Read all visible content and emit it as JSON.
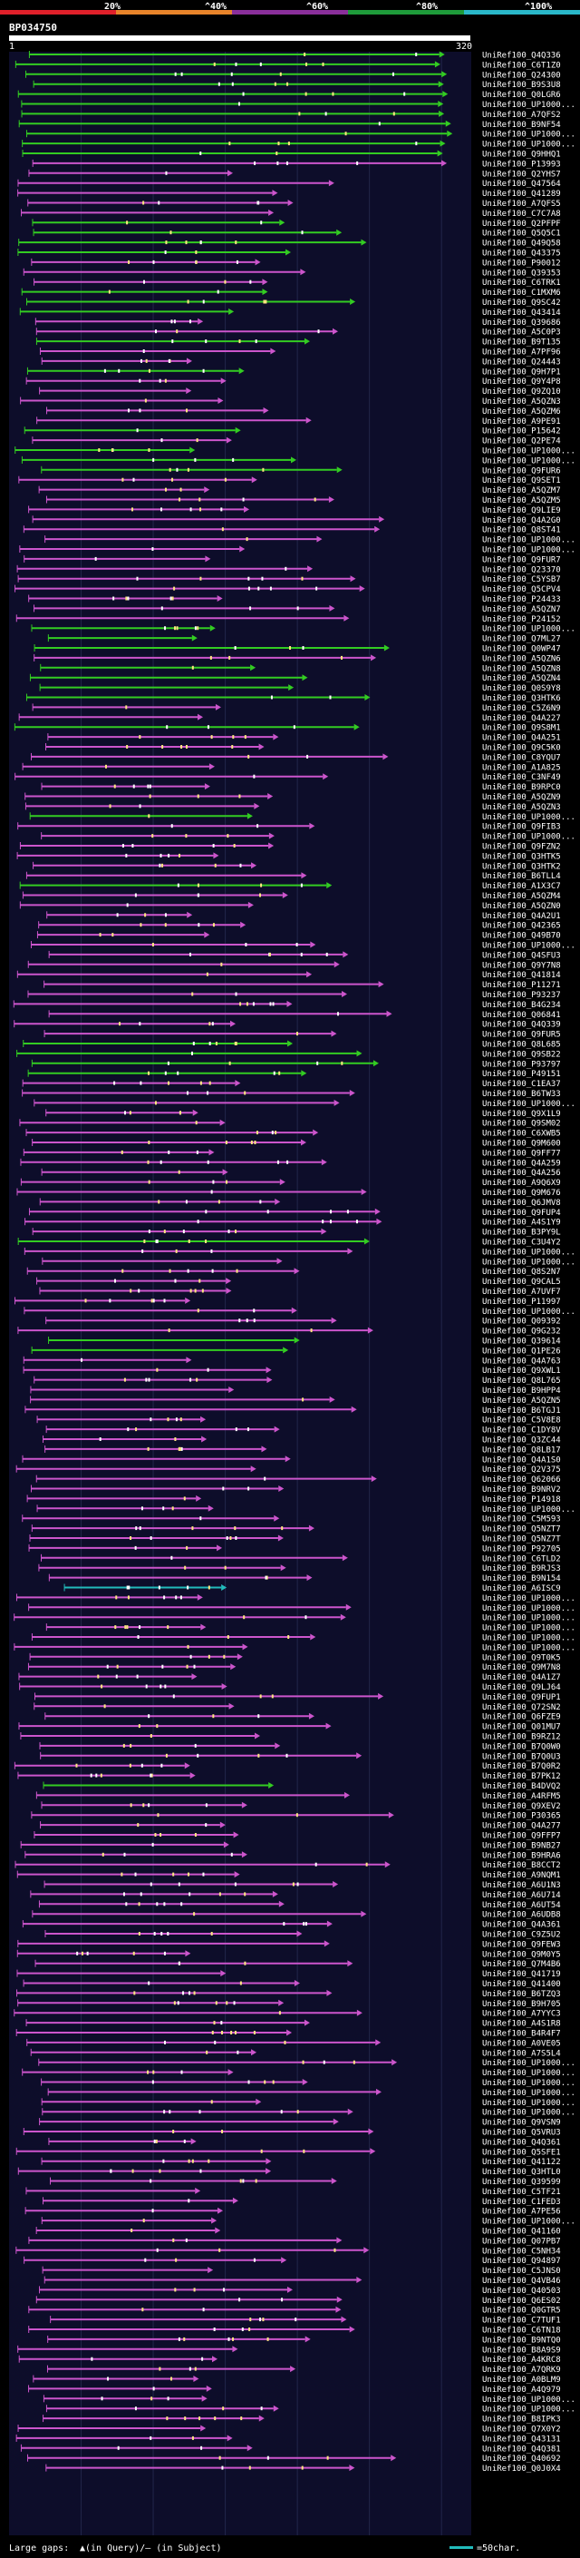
{
  "chart_data": {
    "type": "alignment-overview",
    "query_name": "BP034750",
    "query_range": {
      "start": 1,
      "end": 320,
      "start_label": "1",
      "end_label": "320"
    },
    "identity_scale": {
      "labels": [
        "20%",
        "^40%",
        "^60%",
        "^80%",
        "^100%"
      ],
      "colors": [
        "#e0202a",
        "#e8842a",
        "#8a2f9a",
        "#1e9b3a",
        "#2ab8c9"
      ]
    },
    "series_colors": {
      "high": "#33cc22",
      "mid": "#cc55cc",
      "cyan": "#22bbbb"
    },
    "hit_ids": [
      "UniRef100_Q4Q336",
      "UniRef100_C6T1Z0",
      "UniRef100_Q24300",
      "UniRef100_B9S3U8",
      "UniRef100_Q0LGR6",
      "UniRef100_UP1000...",
      "UniRef100_A7QFS2",
      "UniRef100_B9NF54",
      "UniRef100_UP1000...",
      "UniRef100_UP1000...",
      "UniRef100_Q9HHQ1",
      "UniRef100_P13993",
      "UniRef100_Q2YHS7",
      "UniRef100_Q47564",
      "UniRef100_Q41289",
      "UniRef100_A7QFS5",
      "UniRef100_C7C7A8",
      "UniRef100_Q2PFPF",
      "UniRef100_Q5Q5C1",
      "UniRef100_Q49Q58",
      "UniRef100_Q43375",
      "UniRef100_P90012",
      "UniRef100_Q39353",
      "UniRef100_C6TRK1",
      "UniRef100_C1MXM6",
      "UniRef100_Q9SC42",
      "UniRef100_Q43414",
      "UniRef100_Q39686",
      "UniRef100_A5C0P3",
      "UniRef100_B9T135",
      "UniRef100_A7PF96",
      "UniRef100_Q24443",
      "UniRef100_Q9H7P1",
      "UniRef100_Q9Y4P8",
      "UniRef100_Q9ZQ10",
      "UniRef100_A5QZN3",
      "UniRef100_A5QZM6",
      "UniRef100_A9PE91",
      "UniRef100_P15642",
      "UniRef100_Q2PE74",
      "UniRef100_UP1000...",
      "UniRef100_UP1000...",
      "UniRef100_Q9FUR6",
      "UniRef100_Q9SET1",
      "UniRef100_A5QZM7",
      "UniRef100_A5QZM5",
      "UniRef100_Q9LIE9",
      "UniRef100_Q4A2G0",
      "UniRef100_Q8ST41",
      "UniRef100_UP1000...",
      "UniRef100_UP1000...",
      "UniRef100_Q9FUR7",
      "UniRef100_Q23370",
      "UniRef100_C5YSB7",
      "UniRef100_Q5CPV4",
      "UniRef100_P24433",
      "UniRef100_A5QZN7",
      "UniRef100_P24152",
      "UniRef100_UP1000...",
      "UniRef100_Q7ML27",
      "UniRef100_Q0WP47",
      "UniRef100_A5QZN6",
      "UniRef100_A5QZN8",
      "UniRef100_A5QZN4",
      "UniRef100_Q0S9Y8",
      "UniRef100_Q3HTK6",
      "UniRef100_C5Z6N9",
      "UniRef100_Q4A227",
      "UniRef100_Q9S8M1",
      "UniRef100_Q4A251",
      "UniRef100_Q9C5K0",
      "UniRef100_C8YQU7",
      "UniRef100_A1A825",
      "UniRef100_C3NF49",
      "UniRef100_B9RPC0",
      "UniRef100_A5QZN9",
      "UniRef100_A5QZN3",
      "UniRef100_UP1000...",
      "UniRef100_Q9FIB3",
      "UniRef100_UP1000...",
      "UniRef100_Q9FZN2",
      "UniRef100_Q3HTK5",
      "UniRef100_Q3HTK2",
      "UniRef100_B6TLL4",
      "UniRef100_A1X3C7",
      "UniRef100_A5QZM4",
      "UniRef100_A5QZN0",
      "UniRef100_Q4A2U1",
      "UniRef100_Q42365",
      "UniRef100_Q49B70",
      "UniRef100_UP1000...",
      "UniRef100_Q4SFU3",
      "UniRef100_Q9Y7N8",
      "UniRef100_Q41814",
      "UniRef100_P11271",
      "UniRef100_P93237",
      "UniRef100_B4G234",
      "UniRef100_Q06841",
      "UniRef100_Q4Q339",
      "UniRef100_Q9FUR5",
      "UniRef100_Q8L685",
      "UniRef100_Q9SB22",
      "UniRef100_P93797",
      "UniRef100_P49151",
      "UniRef100_C1EA37",
      "UniRef100_B6TW33",
      "UniRef100_UP1000...",
      "UniRef100_Q9X1L9",
      "UniRef100_Q9SM02",
      "UniRef100_C6XWB5",
      "UniRef100_Q9M600",
      "UniRef100_Q9FF77",
      "UniRef100_Q4A259",
      "UniRef100_Q4A256",
      "UniRef100_A9Q6X9",
      "UniRef100_Q9M676",
      "UniRef100_Q6JMV8",
      "UniRef100_Q9FUP4",
      "UniRef100_A4S1Y9",
      "UniRef100_B3PY9L",
      "UniRef100_C3U4Y2",
      "UniRef100_UP1000...",
      "UniRef100_UP1000...",
      "UniRef100_Q8S2N7",
      "UniRef100_Q9CAL5",
      "UniRef100_A7UVF7",
      "UniRef100_P11997",
      "UniRef100_UP1000...",
      "UniRef100_Q09392",
      "UniRef100_Q9G232",
      "UniRef100_Q39614",
      "UniRef100_Q1PE26",
      "UniRef100_Q4A763",
      "UniRef100_Q9XWL1",
      "UniRef100_Q8L765",
      "UniRef100_B9HPP4",
      "UniRef100_A5QZN5",
      "UniRef100_B6TGJ1",
      "UniRef100_C5V8E8",
      "UniRef100_C1DY8V",
      "UniRef100_Q3ZC44",
      "UniRef100_Q8LB17",
      "UniRef100_Q4A1S0",
      "UniRef100_Q2V375",
      "UniRef100_Q62066",
      "UniRef100_B9NRV2",
      "UniRef100_P14918",
      "UniRef100_UP1000...",
      "UniRef100_C5M593",
      "UniRef100_Q5NZT7",
      "UniRef100_Q5NZ7T",
      "UniRef100_P92705",
      "UniRef100_C6TLD2",
      "UniRef100_B9RJS3",
      "UniRef100_B9N154",
      "UniRef100_A6ISC9",
      "UniRef100_UP1000...",
      "UniRef100_UP1000...",
      "UniRef100_UP1000...",
      "UniRef100_UP1000...",
      "UniRef100_UP1000...",
      "UniRef100_UP1000...",
      "UniRef100_Q9T0K5",
      "UniRef100_Q9M7N8",
      "UniRef100_Q4A1Z7",
      "UniRef100_Q9LJ64",
      "UniRef100_Q9FUP1",
      "UniRef100_Q72SN2",
      "UniRef100_Q6FZE9",
      "UniRef100_Q01MU7",
      "UniRef100_B9RZ12",
      "UniRef100_B7Q0W0",
      "UniRef100_B7Q0U3",
      "UniRef100_B7Q0R2",
      "UniRef100_B7PK12",
      "UniRef100_B4DVQ2",
      "UniRef100_A4RFM5",
      "UniRef100_Q9XEV2",
      "UniRef100_P30365",
      "UniRef100_Q4A277",
      "UniRef100_Q9FFP7",
      "UniRef100_B9NB27",
      "UniRef100_B9HRA6",
      "UniRef100_B8CCT2",
      "UniRef100_A9NQM1",
      "UniRef100_A6U1N3",
      "UniRef100_A6U714",
      "UniRef100_A6UT54",
      "UniRef100_A6UDB8",
      "UniRef100_Q4A361",
      "UniRef100_C9Z5U2",
      "UniRef100_Q9FEW3",
      "UniRef100_Q9M0Y5",
      "UniRef100_Q7M4B6",
      "UniRef100_Q41719",
      "UniRef100_Q41400",
      "UniRef100_B6TZQ3",
      "UniRef100_B9H705",
      "UniRef100_A7YYC3",
      "UniRef100_A4S1R8",
      "UniRef100_B4R4F7",
      "UniRef100_A0VE05",
      "UniRef100_A7S5L4",
      "UniRef100_UP1000...",
      "UniRef100_UP1000...",
      "UniRef100_UP1000...",
      "UniRef100_UP1000...",
      "UniRef100_UP1000...",
      "UniRef100_UP1000...",
      "UniRef100_Q9VSN9",
      "UniRef100_Q5VRU3",
      "UniRef100_Q4Q361",
      "UniRef100_Q5SFE1",
      "UniRef100_Q41122",
      "UniRef100_Q3HTL0",
      "UniRef100_Q39599",
      "UniRef100_C5TF21",
      "UniRef100_C1FED3",
      "UniRef100_A7PE56",
      "UniRef100_UP1000...",
      "UniRef100_Q41160",
      "UniRef100_Q07PB7",
      "UniRef100_C5NH34",
      "UniRef100_Q94897",
      "UniRef100_C5JNS0",
      "UniRef100_Q4VB46",
      "UniRef100_Q40503",
      "UniRef100_Q6ES02",
      "UniRef100_Q0GTR5",
      "UniRef100_C7TUF1",
      "UniRef100_C6TN18",
      "UniRef100_B9NTQ0",
      "UniRef100_B8A9S9",
      "UniRef100_A4KRC8",
      "UniRef100_A7QRK9",
      "UniRef100_A0BLM9",
      "UniRef100_A4Q979",
      "UniRef100_UP1000...",
      "UniRef100_UP1000...",
      "UniRef100_B8IPK3",
      "UniRef100_Q7X0Y2",
      "UniRef100_Q43131",
      "UniRef100_Q4Q381",
      "UniRef100_Q40692",
      "UniRef100_Q0J0X4"
    ],
    "footer": {
      "large_gaps_label": "Large gaps:",
      "gap_legend": "▲(in Query)/— (in Subject)",
      "scale_label": "=50char."
    }
  }
}
